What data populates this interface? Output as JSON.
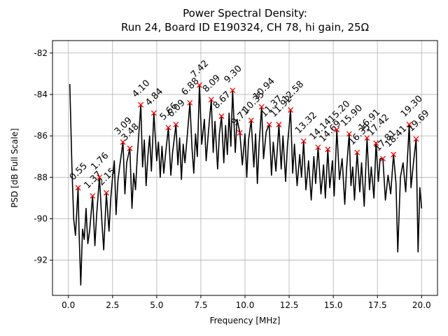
{
  "chart_data": {
    "type": "line",
    "title": [
      "Power Spectral Density:",
      "Run 24, Board ID E190324, CH 78, hi gain, 25Ω"
    ],
    "x_label": "Frequency [MHz]",
    "y_label": "PSD [dB Full Scale]",
    "xlim": [
      -0.9,
      20.9
    ],
    "ylim": [
      -93.7,
      -81.4
    ],
    "xticks": [
      {
        "value": 0,
        "label": "0.0"
      },
      2.5,
      {
        "value": 5,
        "label": "5.0"
      },
      7.5,
      {
        "value": 10,
        "label": "10.0"
      },
      12.5,
      {
        "value": 15,
        "label": "15.0"
      },
      17.5,
      {
        "value": 20,
        "label": "20.0"
      }
    ],
    "yticks": [
      -92,
      -90,
      -88,
      -86,
      -84,
      -82
    ],
    "grid": true,
    "series": [
      {
        "color": "#000000",
        "x": [
          0.08,
          0.2,
          0.3,
          0.4,
          0.55,
          0.6,
          0.7,
          0.8,
          0.9,
          1.0,
          1.1,
          1.2,
          1.37,
          1.5,
          1.6,
          1.76,
          1.9,
          2.0,
          2.15,
          2.3,
          2.4,
          2.5,
          2.6,
          2.7,
          2.8,
          2.9,
          3.09,
          3.2,
          3.3,
          3.48,
          3.6,
          3.7,
          3.8,
          3.9,
          4.1,
          4.2,
          4.3,
          4.4,
          4.5,
          4.6,
          4.7,
          4.84,
          5.0,
          5.1,
          5.2,
          5.3,
          5.4,
          5.5,
          5.66,
          5.8,
          5.9,
          6.09,
          6.2,
          6.3,
          6.4,
          6.5,
          6.6,
          6.75,
          6.88,
          7.0,
          7.1,
          7.2,
          7.3,
          7.42,
          7.55,
          7.7,
          7.8,
          7.95,
          8.09,
          8.2,
          8.3,
          8.45,
          8.55,
          8.67,
          8.8,
          8.9,
          9.0,
          9.1,
          9.2,
          9.3,
          9.45,
          9.55,
          9.71,
          9.85,
          10.0,
          10.1,
          10.2,
          10.35,
          10.5,
          10.6,
          10.7,
          10.8,
          10.94,
          11.05,
          11.2,
          11.37,
          11.5,
          11.6,
          11.75,
          11.92,
          12.05,
          12.15,
          12.3,
          12.4,
          12.58,
          12.7,
          12.8,
          12.95,
          13.1,
          13.2,
          13.32,
          13.45,
          13.6,
          13.75,
          13.9,
          14.0,
          14.14,
          14.3,
          14.45,
          14.55,
          14.69,
          14.8,
          14.95,
          15.05,
          15.2,
          15.35,
          15.5,
          15.65,
          15.75,
          15.9,
          16.0,
          16.1,
          16.2,
          16.35,
          16.5,
          16.6,
          16.75,
          16.91,
          17.05,
          17.15,
          17.3,
          17.42,
          17.55,
          17.65,
          17.81,
          17.95,
          18.1,
          18.25,
          18.41,
          18.55,
          18.65,
          18.8,
          18.95,
          19.1,
          19.3,
          19.4,
          19.55,
          19.69,
          19.8,
          19.9,
          20.0
        ],
        "values": [
          -83.5,
          -87.5,
          -90.0,
          -90.8,
          -88.5,
          -90.5,
          -93.2,
          -90.5,
          -91.0,
          -89.5,
          -91.2,
          -90.6,
          -88.9,
          -91.3,
          -89.8,
          -88.0,
          -90.2,
          -91.5,
          -88.75,
          -90.6,
          -89.0,
          -88.0,
          -87.2,
          -89.8,
          -88.2,
          -87.5,
          -86.3,
          -88.8,
          -87.3,
          -86.6,
          -89.5,
          -87.8,
          -88.6,
          -87.0,
          -84.5,
          -87.5,
          -86.2,
          -88.4,
          -87.0,
          -86.0,
          -87.7,
          -84.9,
          -87.2,
          -86.3,
          -88.0,
          -86.5,
          -87.8,
          -86.9,
          -85.6,
          -87.9,
          -86.8,
          -85.45,
          -87.4,
          -86.1,
          -88.1,
          -86.4,
          -87.3,
          -85.8,
          -84.4,
          -86.6,
          -87.8,
          -85.9,
          -87.0,
          -83.55,
          -86.4,
          -85.2,
          -87.2,
          -85.6,
          -84.25,
          -86.8,
          -85.3,
          -87.6,
          -85.9,
          -85.05,
          -87.3,
          -85.5,
          -86.9,
          -84.9,
          -86.5,
          -83.8,
          -86.8,
          -85.2,
          -85.85,
          -87.4,
          -85.9,
          -88.0,
          -86.2,
          -85.25,
          -87.5,
          -85.9,
          -88.3,
          -86.4,
          -84.6,
          -87.1,
          -85.8,
          -85.45,
          -87.9,
          -86.3,
          -87.7,
          -85.45,
          -87.6,
          -86.0,
          -88.2,
          -86.5,
          -84.75,
          -87.8,
          -86.4,
          -88.4,
          -86.9,
          -88.0,
          -86.25,
          -88.6,
          -87.2,
          -89.1,
          -87.0,
          -88.3,
          -86.55,
          -88.8,
          -87.4,
          -89.0,
          -86.65,
          -88.5,
          -87.2,
          -88.9,
          -85.7,
          -88.1,
          -87.1,
          -89.3,
          -87.6,
          -85.9,
          -88.4,
          -87.5,
          -89.1,
          -86.8,
          -88.7,
          -87.3,
          -89.4,
          -86.1,
          -88.6,
          -87.5,
          -89.0,
          -86.35,
          -88.2,
          -87.1,
          -87.1,
          -89.1,
          -87.9,
          -88.8,
          -86.9,
          -88.3,
          -91.6,
          -88.0,
          -87.3,
          -88.7,
          -85.45,
          -88.5,
          -87.2,
          -86.15,
          -91.6,
          -88.5,
          -89.5
        ]
      }
    ],
    "peaks": {
      "color": "#ff0000",
      "x": [
        0.55,
        1.37,
        1.76,
        2.15,
        3.09,
        3.48,
        4.1,
        4.84,
        5.66,
        6.09,
        6.88,
        7.42,
        8.09,
        8.67,
        9.3,
        9.71,
        10.35,
        10.94,
        11.37,
        11.92,
        12.58,
        13.32,
        14.14,
        14.69,
        15.2,
        15.9,
        16.35,
        16.91,
        17.42,
        17.81,
        18.41,
        19.3,
        19.69
      ],
      "values": [
        -88.5,
        -88.9,
        -88.0,
        -88.75,
        -86.3,
        -86.6,
        -84.5,
        -84.9,
        -85.6,
        -85.45,
        -84.4,
        -83.55,
        -84.25,
        -85.05,
        -83.8,
        -85.85,
        -85.25,
        -84.6,
        -85.45,
        -85.45,
        -84.75,
        -86.25,
        -86.55,
        -86.65,
        -85.7,
        -85.9,
        -86.8,
        -86.1,
        -86.35,
        -87.1,
        -86.9,
        -85.45,
        -86.15
      ],
      "labels": [
        "0.55",
        "1.37",
        "1.76",
        "2.15",
        "3.09",
        "3.48",
        "4.10",
        "4.84",
        "5.66",
        "6.09",
        "6.88",
        "7.42",
        "8.09",
        "8.67",
        "9.30",
        "9.71",
        "10.35",
        "10.94",
        "11.37",
        "11.92",
        "12.58",
        "13.32",
        "14.14",
        "14.69",
        "15.20",
        "15.90",
        "16.35",
        "16.91",
        "17.42",
        "17.81",
        "18.41",
        "19.30",
        "19.69"
      ]
    }
  }
}
